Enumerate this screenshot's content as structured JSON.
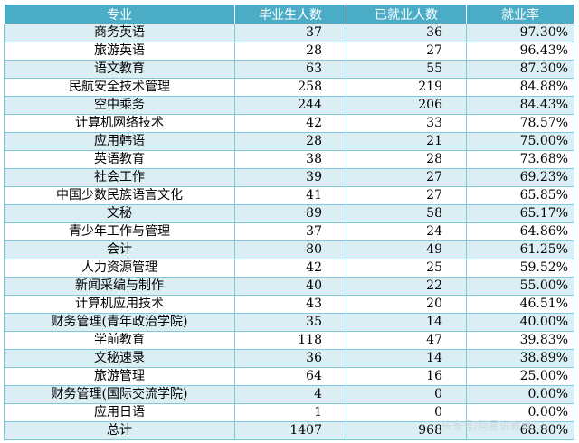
{
  "headers": [
    "专业",
    "毕业生人数",
    "已就业人数",
    "就业率"
  ],
  "rows": [
    {
      "major": "商务英语",
      "grads": "37",
      "employed": "36",
      "rate": "97.30%"
    },
    {
      "major": "旅游英语",
      "grads": "28",
      "employed": "27",
      "rate": "96.43%"
    },
    {
      "major": "语文教育",
      "grads": "63",
      "employed": "55",
      "rate": "87.30%"
    },
    {
      "major": "民航安全技术管理",
      "grads": "258",
      "employed": "219",
      "rate": "84.88%"
    },
    {
      "major": "空中乘务",
      "grads": "244",
      "employed": "206",
      "rate": "84.43%"
    },
    {
      "major": "计算机网络技术",
      "grads": "42",
      "employed": "33",
      "rate": "78.57%"
    },
    {
      "major": "应用韩语",
      "grads": "28",
      "employed": "21",
      "rate": "75.00%"
    },
    {
      "major": "英语教育",
      "grads": "38",
      "employed": "28",
      "rate": "73.68%"
    },
    {
      "major": "社会工作",
      "grads": "39",
      "employed": "27",
      "rate": "69.23%"
    },
    {
      "major": "中国少数民族语言文化",
      "grads": "41",
      "employed": "27",
      "rate": "65.85%"
    },
    {
      "major": "文秘",
      "grads": "89",
      "employed": "58",
      "rate": "65.17%"
    },
    {
      "major": "青少年工作与管理",
      "grads": "37",
      "employed": "24",
      "rate": "64.86%"
    },
    {
      "major": "会计",
      "grads": "80",
      "employed": "49",
      "rate": "61.25%"
    },
    {
      "major": "人力资源管理",
      "grads": "42",
      "employed": "25",
      "rate": "59.52%"
    },
    {
      "major": "新闻采编与制作",
      "grads": "40",
      "employed": "22",
      "rate": "55.00%"
    },
    {
      "major": "计算机应用技术",
      "grads": "43",
      "employed": "20",
      "rate": "46.51%"
    },
    {
      "major": "财务管理(青年政治学院)",
      "grads": "35",
      "employed": "14",
      "rate": "40.00%"
    },
    {
      "major": "学前教育",
      "grads": "118",
      "employed": "47",
      "rate": "39.83%"
    },
    {
      "major": "文秘速录",
      "grads": "36",
      "employed": "14",
      "rate": "38.89%"
    },
    {
      "major": "旅游管理",
      "grads": "64",
      "employed": "16",
      "rate": "25.00%"
    },
    {
      "major": "财务管理(国际交流学院)",
      "grads": "4",
      "employed": "0",
      "rate": "0.00%"
    },
    {
      "major": "应用日语",
      "grads": "1",
      "employed": "0",
      "rate": "0.00%"
    },
    {
      "major": "总计",
      "grads": "1407",
      "employed": "968",
      "rate": "68.80%"
    }
  ],
  "watermark": "头条号/阿星说教育"
}
